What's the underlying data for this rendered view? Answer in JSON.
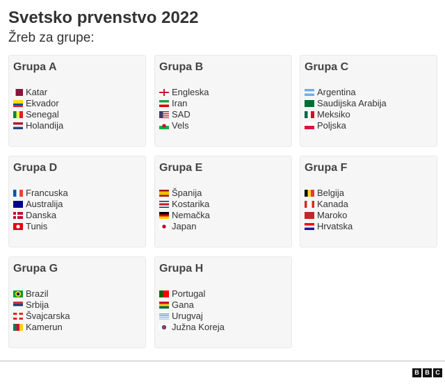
{
  "title": "Svetsko prvenstvo 2022",
  "subtitle": "Žreb za grupe:",
  "groups": [
    {
      "name": "Grupa A",
      "teams": [
        {
          "name": "Katar",
          "flag": "linear-gradient(90deg,#fff 25%,#8a1538 25%)"
        },
        {
          "name": "Ekvador",
          "flag": "linear-gradient(#ffdd00 50%,#034ea2 50% 75%,#ed1c24 75%)"
        },
        {
          "name": "Senegal",
          "flag": "linear-gradient(90deg,#00853f 33%,#fdef42 33% 66%,#e31b23 66%)"
        },
        {
          "name": "Holandija",
          "flag": "linear-gradient(#ae1c28 33%,#fff 33% 66%,#21468b 66%)"
        }
      ]
    },
    {
      "name": "Grupa B",
      "teams": [
        {
          "name": "Engleska",
          "flag": "linear-gradient(90deg,transparent 43%,#cf142b 43% 57%,transparent 57%),linear-gradient(transparent 40%,#cf142b 40% 60%,#fff 60%),#fff"
        },
        {
          "name": "Iran",
          "flag": "linear-gradient(#239f40 33%,#fff 33% 66%,#da0000 66%)"
        },
        {
          "name": "SAD",
          "flag": "linear-gradient(90deg,#3c3b6e 40%,transparent 40%),repeating-linear-gradient(#b22234 0 1.5px,#fff 1.5px 3px)"
        },
        {
          "name": "Vels",
          "flag": "radial-gradient(circle,#c8102e 30%,transparent 32%),linear-gradient(#fff 50%,#00b140 50%)"
        }
      ]
    },
    {
      "name": "Grupa C",
      "teams": [
        {
          "name": "Argentina",
          "flag": "linear-gradient(#74acdf 33%,#fff 33% 66%,#74acdf 66%)"
        },
        {
          "name": "Saudijska Arabija",
          "flag": "#006c35"
        },
        {
          "name": "Meksiko",
          "flag": "linear-gradient(90deg,#006847 33%,#fff 33% 66%,#ce1126 66%)"
        },
        {
          "name": "Poljska",
          "flag": "linear-gradient(#fff 50%,#dc143c 50%)"
        }
      ]
    },
    {
      "name": "Grupa D",
      "teams": [
        {
          "name": "Francuska",
          "flag": "linear-gradient(90deg,#0055a4 33%,#fff 33% 66%,#ef4135 66%)"
        },
        {
          "name": "Australija",
          "flag": "#00008b"
        },
        {
          "name": "Danska",
          "flag": "linear-gradient(90deg,transparent 30%,#fff 30% 42%,transparent 42%),linear-gradient(transparent 40%,#fff 40% 60%,transparent 60%),#c60c30"
        },
        {
          "name": "Tunis",
          "flag": "radial-gradient(circle,#fff 30%,#e70013 32%)"
        }
      ]
    },
    {
      "name": "Grupa E",
      "teams": [
        {
          "name": "Španija",
          "flag": "linear-gradient(#aa151b 25%,#f1bf00 25% 75%,#aa151b 75%)"
        },
        {
          "name": "Kostarika",
          "flag": "linear-gradient(#002b7f 17%,#fff 17% 33%,#ce1126 33% 67%,#fff 67% 83%,#002b7f 83%)"
        },
        {
          "name": "Nemačka",
          "flag": "linear-gradient(#000 33%,#dd0000 33% 66%,#ffce00 66%)"
        },
        {
          "name": "Japan",
          "flag": "radial-gradient(circle,#bc002d 30%,#fff 32%)"
        }
      ]
    },
    {
      "name": "Grupa F",
      "teams": [
        {
          "name": "Belgija",
          "flag": "linear-gradient(90deg,#000 33%,#fdda24 33% 66%,#ef3340 66%)"
        },
        {
          "name": "Kanada",
          "flag": "linear-gradient(90deg,#d52b1e 25%,#fff 25% 75%,#d52b1e 75%)"
        },
        {
          "name": "Maroko",
          "flag": "#c1272d"
        },
        {
          "name": "Hrvatska",
          "flag": "linear-gradient(#ff0000 33%,#fff 33% 66%,#171796 66%)"
        }
      ]
    },
    {
      "name": "Grupa G",
      "teams": [
        {
          "name": "Brazil",
          "flag": "radial-gradient(circle,#002776 25%,#ffdf00 27% 45%,#009c3b 47%)"
        },
        {
          "name": "Srbija",
          "flag": "linear-gradient(#c6363c 33%,#0c4076 33% 66%,#fff 66%)"
        },
        {
          "name": "Švajcarska",
          "flag": "linear-gradient(90deg,transparent 40%,#fff 40% 60%,transparent 60%),linear-gradient(transparent 30%,#fff 30% 70%,transparent 70%),#da291c"
        },
        {
          "name": "Kamerun",
          "flag": "linear-gradient(90deg,#007a5e 33%,#ce1126 33% 66%,#fcd116 66%)"
        }
      ]
    },
    {
      "name": "Grupa H",
      "teams": [
        {
          "name": "Portugal",
          "flag": "linear-gradient(90deg,#006600 40%,#ff0000 40%)"
        },
        {
          "name": "Gana",
          "flag": "linear-gradient(#ce1126 33%,#fcd116 33% 66%,#006b3f 66%)"
        },
        {
          "name": "Urugvaj",
          "flag": "repeating-linear-gradient(#fff 0 1.2px,#7b9fd4 1.2px 2.4px)"
        },
        {
          "name": "Južna Koreja",
          "flag": "radial-gradient(circle,#cd2e3a 25%,#0047a0 27% 35%,#fff 37%)"
        }
      ]
    }
  ],
  "logo": [
    "B",
    "B",
    "C"
  ]
}
